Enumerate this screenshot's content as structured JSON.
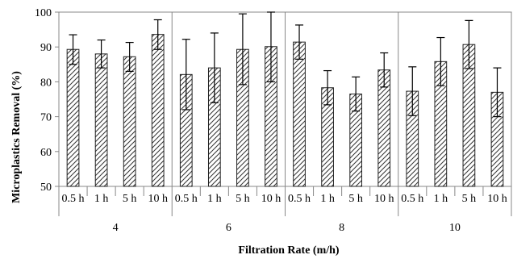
{
  "chart_data": {
    "type": "bar",
    "ylabel": "Microplastics Removal (%)",
    "xlabel": "Filtration Rate (m/h)",
    "ylim": [
      50,
      100
    ],
    "yticks": [
      50,
      60,
      70,
      80,
      90,
      100
    ],
    "grid": false,
    "legend": "none",
    "bar_style": "diagonal hatch",
    "groups": [
      {
        "label": "4",
        "categories": [
          "0.5 h",
          "1 h",
          "5 h",
          "10 h"
        ],
        "values": [
          89.3,
          88.0,
          87.2,
          93.6
        ],
        "error_upper": [
          93.5,
          92.0,
          91.3,
          97.8
        ],
        "error_lower": [
          85.0,
          84.0,
          83.0,
          89.3
        ]
      },
      {
        "label": "6",
        "categories": [
          "0.5 h",
          "1 h",
          "5 h",
          "10 h"
        ],
        "values": [
          82.1,
          84.0,
          89.3,
          90.1
        ],
        "error_upper": [
          92.2,
          94.0,
          99.5,
          100.0
        ],
        "error_lower": [
          72.0,
          74.0,
          79.2,
          80.0
        ]
      },
      {
        "label": "8",
        "categories": [
          "0.5 h",
          "1 h",
          "5 h",
          "10 h"
        ],
        "values": [
          91.4,
          78.3,
          76.5,
          83.4
        ],
        "error_upper": [
          96.3,
          83.2,
          81.4,
          88.3
        ],
        "error_lower": [
          86.5,
          73.4,
          71.6,
          78.5
        ]
      },
      {
        "label": "10",
        "categories": [
          "0.5 h",
          "1 h",
          "5 h",
          "10 h"
        ],
        "values": [
          77.3,
          85.8,
          90.7,
          77.0
        ],
        "error_upper": [
          84.3,
          92.7,
          97.6,
          84.0
        ],
        "error_lower": [
          70.3,
          78.9,
          83.8,
          70.0
        ]
      }
    ]
  }
}
